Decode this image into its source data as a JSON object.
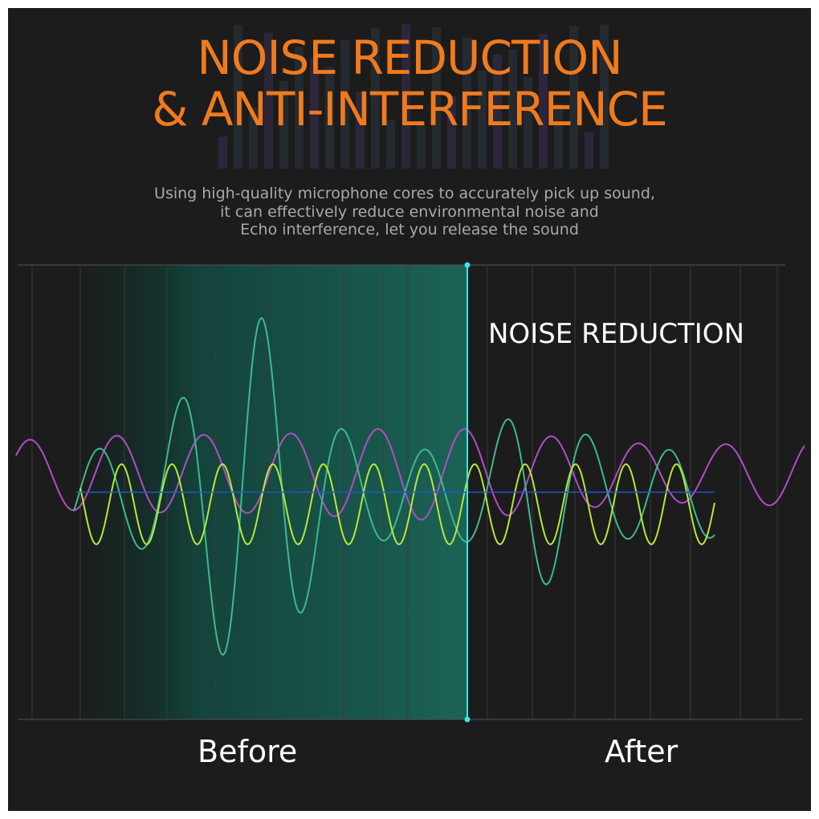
{
  "header": {
    "title_line1": "NOISE REDUCTION",
    "title_line2": "& ANTI-INTERFERENCE",
    "description_line1": "Using high-quality microphone cores to accurately pick up sound,",
    "description_line2": "it can effectively reduce environmental noise and",
    "description_line3": "Echo interference, let you release the sound"
  },
  "comparison": {
    "panel_label": "NOISE REDUCTION",
    "before_label": "Before",
    "after_label": "After"
  },
  "colors": {
    "background": "#1c1c1c",
    "title": "#f07a1e",
    "description": "#a9a9a9",
    "highlight_panel": "#1b7a66",
    "divider": "#39e6e6",
    "wave_purple": "#b24dc4",
    "wave_teal": "#3fb88e",
    "wave_yellow_green": "#b5e83a",
    "baseline_blue": "#2255cc"
  },
  "icons": {
    "background_decoration": "equalizer-bars"
  }
}
